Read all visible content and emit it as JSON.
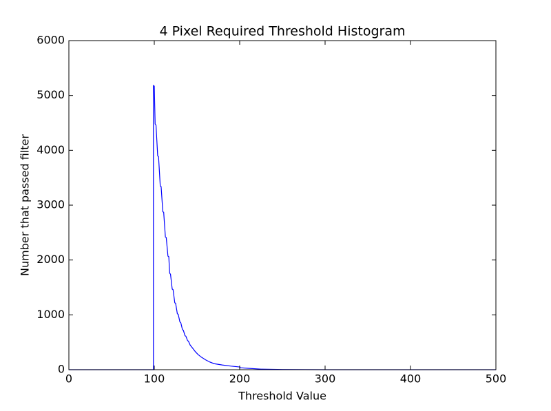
{
  "chart_data": {
    "type": "line",
    "title": "4 Pixel Required Threshold Histogram",
    "x_label": "Threshold Value",
    "y_label": "Number that passed filter",
    "color": "#0000ff",
    "x": [
      0,
      99,
      99,
      100,
      101,
      102,
      104,
      105,
      107,
      108,
      110,
      111,
      113,
      114,
      116,
      117,
      118,
      119,
      121,
      122,
      124,
      125,
      127,
      128,
      130,
      131,
      133,
      134,
      136,
      137,
      139,
      140,
      142,
      145,
      148,
      151,
      155,
      160,
      165,
      170,
      180,
      190,
      200,
      201,
      210,
      225,
      250,
      300,
      500
    ],
    "values": [
      0,
      0,
      5180,
      5170,
      4480,
      4460,
      3900,
      3880,
      3350,
      3340,
      2880,
      2870,
      2420,
      2410,
      2070,
      2060,
      1760,
      1740,
      1470,
      1460,
      1220,
      1210,
      1020,
      1010,
      870,
      860,
      730,
      720,
      620,
      610,
      530,
      520,
      450,
      390,
      330,
      280,
      230,
      180,
      140,
      110,
      85,
      65,
      50,
      35,
      25,
      10,
      3,
      0,
      0
    ],
    "xlim": [
      0,
      500
    ],
    "xticks": [
      0,
      100,
      200,
      300,
      400,
      500
    ],
    "ylim": [
      0,
      6000
    ],
    "yticks": [
      0,
      1000,
      2000,
      3000,
      4000,
      5000,
      6000
    ]
  }
}
